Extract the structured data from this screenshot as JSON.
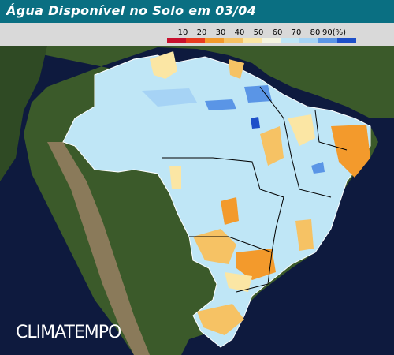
{
  "header": {
    "title": "Água Disponível no Solo em 03/04"
  },
  "legend": {
    "labels": [
      "10",
      "20",
      "30",
      "40",
      "50",
      "60",
      "70",
      "80",
      "90(%)"
    ],
    "colors": [
      "#c8102e",
      "#e83a1f",
      "#f39a2c",
      "#f6c264",
      "#fbe6a4",
      "#f4f4e0",
      "#bfe6f6",
      "#a6d3f5",
      "#5a95e6",
      "#1d4fc9"
    ]
  },
  "logo": "CLIMATEMPO"
}
